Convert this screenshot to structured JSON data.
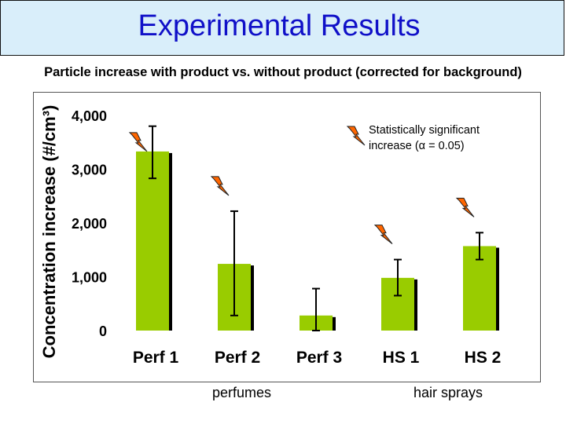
{
  "header": {
    "title": "Experimental Results",
    "subtitle": "Particle increase with product vs. without product (corrected for background)"
  },
  "groups": {
    "perfumes": "perfumes",
    "hair_sprays": "hair sprays"
  },
  "colors": {
    "bar_fill": "#99cc00",
    "bar_shadow": "#000000",
    "title_band": "#d9eefa",
    "title_text": "#1010c8",
    "significance_marker": "#ff6600"
  },
  "chart_data": {
    "type": "bar",
    "title": "",
    "xlabel": "",
    "ylabel": "Concentration increase (#/cm³)",
    "categories": [
      "Perf 1",
      "Perf 2",
      "Perf 3",
      "HS 1",
      "HS 2"
    ],
    "values": [
      3330,
      1240,
      280,
      980,
      1570
    ],
    "error_low": [
      2830,
      280,
      0,
      650,
      1320
    ],
    "error_high": [
      3800,
      2220,
      780,
      1320,
      1820
    ],
    "significant": [
      true,
      true,
      false,
      true,
      true
    ],
    "ylim": [
      0,
      4000
    ],
    "yticks": [
      "0",
      "1,000",
      "2,000",
      "3,000",
      "4,000"
    ],
    "ytick_values": [
      0,
      1000,
      2000,
      3000,
      4000
    ],
    "grid": false,
    "legend": {
      "line1": "Statistically significant",
      "line2": "increase   (α = 0.05)",
      "placement": "top-right",
      "icon": "lightning-bolt-icon"
    }
  }
}
